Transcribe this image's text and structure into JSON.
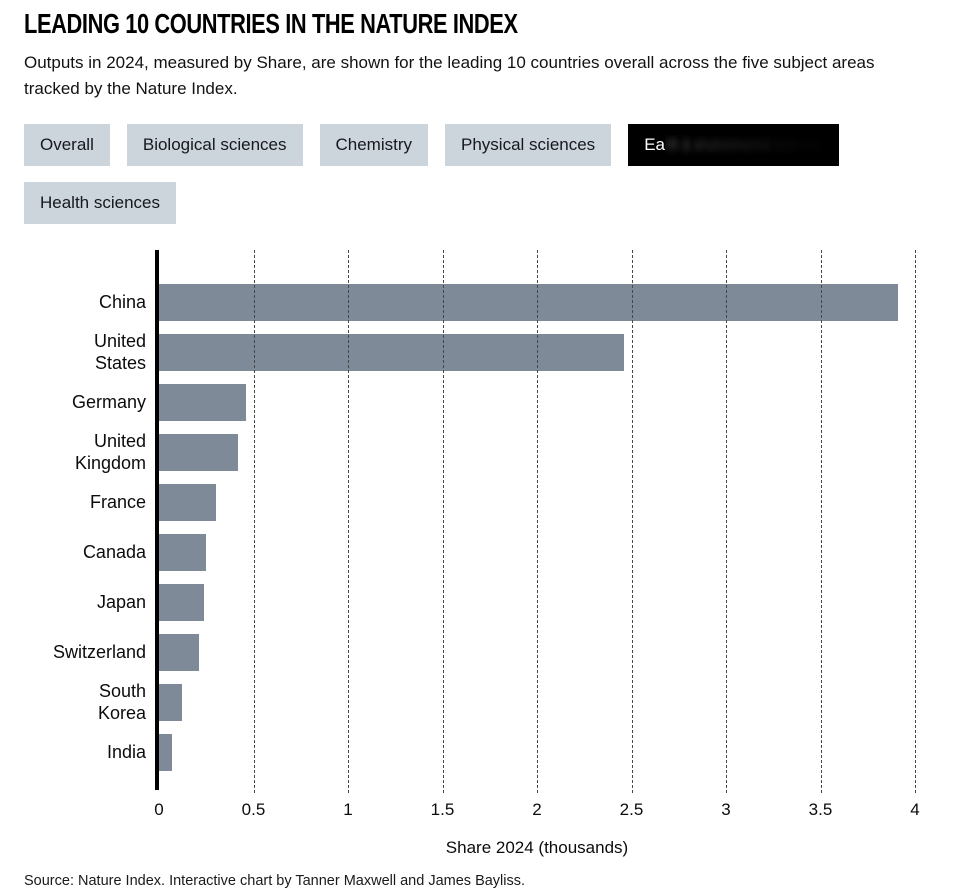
{
  "header": {
    "title": "LEADING 10 COUNTRIES IN THE NATURE INDEX",
    "subtitle": "Outputs in 2024, measured by Share, are shown for the leading 10 countries overall across the five subject areas tracked by the Nature Index."
  },
  "tabs": {
    "items": [
      {
        "label": "Overall",
        "active": false
      },
      {
        "label": "Biological sciences",
        "active": false
      },
      {
        "label": "Chemistry",
        "active": false
      },
      {
        "label": "Physical sciences",
        "active": false
      },
      {
        "label": "Earth & environmental sciences",
        "active": true,
        "visible_prefix": "Ea",
        "blurred_rest": "rth & environmental sciences"
      },
      {
        "label": "Health sciences",
        "active": false
      }
    ],
    "colors": {
      "inactive_bg": "#ccd4dc",
      "inactive_text": "#16191d",
      "active_bg": "#000000",
      "active_text": "#ffffff"
    }
  },
  "chart_data": {
    "type": "bar",
    "orientation": "horizontal",
    "categories": [
      "China",
      "United States",
      "Germany",
      "United Kingdom",
      "France",
      "Canada",
      "Japan",
      "Switzerland",
      "South Korea",
      "India"
    ],
    "values": [
      3.91,
      2.46,
      0.46,
      0.42,
      0.3,
      0.25,
      0.24,
      0.21,
      0.12,
      0.07
    ],
    "xlabel": "Share 2024 (thousands)",
    "xlim": [
      0,
      4
    ],
    "xticks": [
      0,
      0.5,
      1,
      1.5,
      2,
      2.5,
      3,
      3.5,
      4
    ],
    "xtick_labels": [
      "0",
      "0.5",
      "1",
      "1.5",
      "2",
      "2.5",
      "3",
      "3.5",
      "4"
    ],
    "bar_color": "#7f8a99",
    "grid": "dashed-vertical",
    "legend": "none"
  },
  "footer": {
    "source": "Source: Nature Index. Interactive chart by Tanner Maxwell and James Bayliss."
  }
}
